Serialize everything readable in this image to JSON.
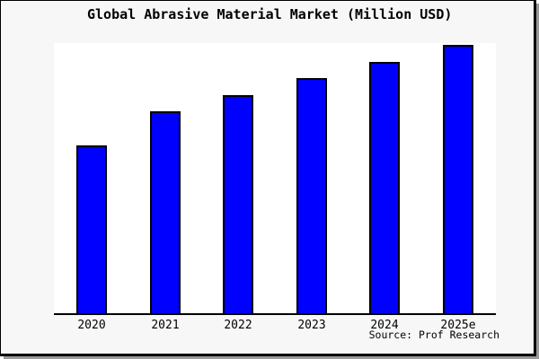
{
  "chart_data": {
    "type": "bar",
    "title": "Global Abrasive Material Market (Million USD)",
    "categories": [
      "2020",
      "2021",
      "2022",
      "2023",
      "2024",
      "2025e"
    ],
    "values": [
      62.5,
      75.3,
      81.3,
      87.6,
      93.6,
      100
    ],
    "values_note": "No y-axis, gridlines or value labels are shown; values are estimated bar heights as a percent of the tallest (2025e) bar",
    "xlabel": "",
    "ylabel": "",
    "grid": false,
    "y_axis_visible": false,
    "legend": "none",
    "source_label": "Source: Prof Research",
    "colors": {
      "bar_fill": "#0000ff",
      "bar_border": "#000000",
      "plot_background": "#ffffff",
      "canvas_background": "#f7f7f7",
      "frame_border": "#000000",
      "shadow": "#999999",
      "text": "#000000"
    }
  }
}
